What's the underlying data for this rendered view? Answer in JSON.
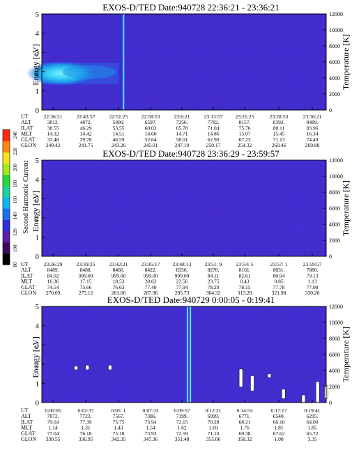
{
  "colors": {
    "background_field": "#3a2fd6",
    "speckle": "#6a1ea0",
    "beam_band": "#1aa9e8",
    "beam_core": "#58e6ff",
    "white_gap": "#ffffff"
  },
  "colorbar": {
    "label": "Second Harmonic Current",
    "ticks": [
      "80",
      "100",
      "120",
      "140",
      "160",
      "180",
      "200",
      "220",
      "240"
    ],
    "colors": [
      "#000000",
      "#3b0a5c",
      "#5b1fa8",
      "#2b2fe0",
      "#1b72f0",
      "#11b7ee",
      "#1ad49e",
      "#25d93a",
      "#a6e81b",
      "#f3e21a",
      "#ff8a10",
      "#ff2a10"
    ]
  },
  "chart_data": [
    {
      "type": "heatmap",
      "title": "EXOS-D/TED   Date:940728  22:36:21 - 23:36:21",
      "ylabel": "Energy [eV]",
      "y2label": "Temperature [K]",
      "ylim": [
        0,
        5
      ],
      "y2lim": [
        0,
        12000
      ],
      "yticks": [
        "0",
        "1",
        "2",
        "3",
        "4",
        "5"
      ],
      "y2ticks": [
        "0",
        "2000",
        "4000",
        "6000",
        "8000",
        "10000",
        "12000"
      ],
      "features": [
        {
          "kind": "beam_band",
          "t_start": 0.0,
          "t_end": 0.27,
          "energy_center": 1.9,
          "energy_halfwidth": 0.8
        },
        {
          "kind": "spike",
          "t": 0.287,
          "energy_max": 5
        }
      ],
      "table": {
        "rows": [
          {
            "label": "UT",
            "values": [
              "22:36:21",
              "22:43:57",
              "22:51:25",
              "22:58:53",
              "23:6:21",
              "23:13:57",
              "23:21:25",
              "23:28:53",
              "23:36:21"
            ]
          },
          {
            "label": "ALT",
            "values": [
              "3812.",
              "4872.",
              "5800.",
              "6597.",
              "7256.",
              "7782.",
              "8157.",
              "8392.",
              "8489."
            ]
          },
          {
            "label": "ILAT",
            "values": [
              "38.55",
              "46.29",
              "53.55",
              "60.02",
              "65.78",
              "71.04",
              "75.76",
              "80.11",
              "83.96"
            ]
          },
          {
            "label": "MLT",
            "values": [
              "14.32",
              "14.42",
              "14.51",
              "14.60",
              "14.71",
              "14.86",
              "15.07",
              "15.45",
              "16.34"
            ]
          },
          {
            "label": "GLAT",
            "values": [
              "32.48",
              "39.78",
              "46.59",
              "52.64",
              "58.01",
              "62.90",
              "67.23",
              "71.13",
              "74.49"
            ]
          },
          {
            "label": "GLON",
            "values": [
              "240.42",
              "241.75",
              "243.26",
              "245.01",
              "247.19",
              "250.17",
              "254.32",
              "260.46",
              "269.88"
            ]
          }
        ]
      }
    },
    {
      "type": "heatmap",
      "title": "EXOS-D/TED   Date:940728  23:36:29 - 23:59:57",
      "ylabel": "Energy [eV]",
      "y2label": "Temperature [K]",
      "ylim": [
        0,
        5
      ],
      "y2lim": [
        0,
        12000
      ],
      "yticks": [
        "0",
        "1",
        "2",
        "3",
        "4",
        "5"
      ],
      "y2ticks": [
        "0",
        "2000",
        "4000",
        "6000",
        "8000",
        "10000",
        "12000"
      ],
      "features": [],
      "table": {
        "rows": [
          {
            "label": "UT",
            "values": [
              "23:36:29",
              "23:39:25",
              "23:42:21",
              "23:45:17",
              "23:48:13",
              "23:51: 9",
              "23:54: 5",
              "23:57: 1",
              "23:59:57"
            ]
          },
          {
            "label": "ALT",
            "values": [
              "8489.",
              "8488.",
              "8466.",
              "8422.",
              "8356.",
              "8270.",
              "8161.",
              "8031.",
              "7880."
            ]
          },
          {
            "label": "ILAT",
            "values": [
              "84.02",
              "999.00",
              "999.00",
              "999.00",
              "999.00",
              "84.11",
              "82.61",
              "80.94",
              "79.13"
            ]
          },
          {
            "label": "MLT",
            "values": [
              "16.36",
              "17.15",
              "18.53",
              "20.62",
              "22.56",
              "23.75",
              "0.43",
              "0.85",
              "1.13"
            ]
          },
          {
            "label": "GLAT",
            "values": [
              "74.54",
              "75.66",
              "76.63",
              "77.40",
              "77.94",
              "78.20",
              "78.15",
              "77.78",
              "77.08"
            ]
          },
          {
            "label": "GLON",
            "values": [
              "270.09",
              "275.12",
              "281.06",
              "287.96",
              "295.73",
              "304.32",
              "313.20",
              "321.98",
              "330.20"
            ]
          }
        ]
      }
    },
    {
      "type": "heatmap",
      "title": "EXOS-D/TED   Date:940729  0:00:05 - 0:19:41",
      "ylabel": "Energy [eV]",
      "y2label": "Temperature [K]",
      "ylim": [
        0,
        5
      ],
      "y2lim": [
        0,
        12000
      ],
      "yticks": [
        "0",
        "1",
        "2",
        "3",
        "4",
        "5"
      ],
      "y2ticks": [
        "0",
        "2000",
        "4000",
        "6000",
        "8000",
        "10000",
        "12000"
      ],
      "features": [
        {
          "kind": "spike",
          "t": 0.512,
          "energy_max": 5
        },
        {
          "kind": "spike",
          "t": 0.522,
          "energy_max": 5
        },
        {
          "kind": "white_gap",
          "t": 0.12,
          "e_lo": 1.7,
          "e_hi": 1.9
        },
        {
          "kind": "white_gap",
          "t": 0.16,
          "e_lo": 1.7,
          "e_hi": 1.95
        },
        {
          "kind": "white_gap",
          "t": 0.24,
          "e_lo": 1.7,
          "e_hi": 1.95
        },
        {
          "kind": "white_gap",
          "t": 0.7,
          "e_lo": 0.8,
          "e_hi": 1.75
        },
        {
          "kind": "white_gap",
          "t": 0.74,
          "e_lo": 0.6,
          "e_hi": 1.4
        },
        {
          "kind": "white_gap",
          "t": 0.8,
          "e_lo": 1.3,
          "e_hi": 1.5
        },
        {
          "kind": "white_gap",
          "t": 0.85,
          "e_lo": 0.2,
          "e_hi": 0.7
        },
        {
          "kind": "white_gap",
          "t": 0.92,
          "e_lo": 0.0,
          "e_hi": 0.4
        },
        {
          "kind": "white_gap",
          "t": 0.97,
          "e_lo": 0.0,
          "e_hi": 1.1
        },
        {
          "kind": "white_gap",
          "t": 1.0,
          "e_lo": 0.2,
          "e_hi": 0.9
        }
      ],
      "table": {
        "rows": [
          {
            "label": "UT",
            "values": [
              "0:00:05",
              "0:02:37",
              "0:05: 1",
              "0:07:33",
              "0:09:57",
              "0:12:21",
              "0:14:53",
              "0:17:17",
              "0:19:41"
            ]
          },
          {
            "label": "ALT",
            "values": [
              "7872.",
              "7723.",
              "7567.",
              "7386.",
              "7199.",
              "6999.",
              "6771.",
              "6540.",
              "6295."
            ]
          },
          {
            "label": "ILAT",
            "values": [
              "79.04",
              "77.39",
              "75.75",
              "73.94",
              "72.15",
              "70.28",
              "68.21",
              "66.16",
              "64.00"
            ]
          },
          {
            "label": "MLT",
            "values": [
              "1.14",
              "1.31",
              "1.43",
              "1.54",
              "1.62",
              "1.69",
              "1.76",
              "1.81",
              "1.85"
            ]
          },
          {
            "label": "GLAT",
            "values": [
              "77.04",
              "76.18",
              "75.18",
              "73.93",
              "72.59",
              "71.10",
              "69.38",
              "67.62",
              "65.72"
            ]
          },
          {
            "label": "GLON",
            "values": [
              "330.55",
              "336.95",
              "342.35",
              "347.36",
              "351.48",
              "355.06",
              "358.32",
              "1.00",
              "3.35"
            ]
          }
        ]
      }
    }
  ]
}
